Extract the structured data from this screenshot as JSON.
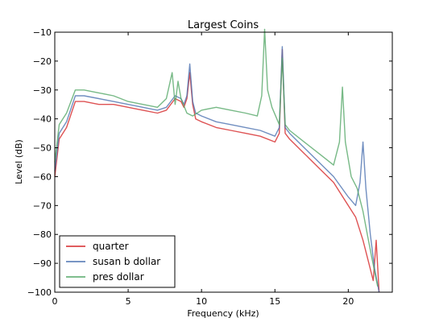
{
  "chart_data": {
    "type": "line",
    "title": "Largest Coins",
    "xlabel": "Frequency (kHz)",
    "ylabel": "Level (dB)",
    "xlim": [
      0,
      23
    ],
    "ylim": [
      -100,
      -10
    ],
    "xticks": [
      0,
      5,
      10,
      15,
      20
    ],
    "yticks": [
      -10,
      -20,
      -30,
      -40,
      -50,
      -60,
      -70,
      -80,
      -90,
      -100
    ],
    "grid": false,
    "legend_position": "lower-left",
    "series": [
      {
        "name": "quarter",
        "color": "#d62728",
        "x": [
          0,
          0.3,
          0.8,
          1.4,
          2,
          3,
          4,
          5,
          6,
          7,
          7.6,
          8.2,
          8.6,
          8.8,
          9.0,
          9.2,
          9.4,
          9.6,
          10,
          11,
          12,
          13,
          14,
          15,
          15.3,
          15.5,
          15.7,
          16,
          17,
          18,
          19,
          20,
          20.5,
          21,
          21.4,
          21.7,
          21.9,
          22.1
        ],
        "values": [
          -60,
          -47,
          -43,
          -34,
          -34,
          -35,
          -35,
          -36,
          -37,
          -38,
          -37,
          -33,
          -34,
          -36,
          -33,
          -24,
          -35,
          -40,
          -41,
          -43,
          -44,
          -45,
          -46,
          -48,
          -45,
          -16,
          -45,
          -47,
          -52,
          -57,
          -62,
          -70,
          -74,
          -82,
          -90,
          -96,
          -82,
          -100
        ]
      },
      {
        "name": "susan b dollar",
        "color": "#4c72b0",
        "x": [
          0,
          0.3,
          0.8,
          1.4,
          2,
          3,
          4,
          5,
          6,
          7,
          7.6,
          8.2,
          8.6,
          8.8,
          9.0,
          9.2,
          9.4,
          9.6,
          10,
          11,
          12,
          13,
          14,
          15,
          15.3,
          15.5,
          15.7,
          16,
          17,
          18,
          19,
          20,
          20.5,
          20.8,
          21.0,
          21.2,
          21.5,
          21.8,
          22.1
        ],
        "values": [
          -58,
          -45,
          -41,
          -32,
          -32,
          -33,
          -34,
          -35,
          -36,
          -37,
          -36,
          -32,
          -33,
          -35,
          -32,
          -21,
          -34,
          -38,
          -39,
          -41,
          -42,
          -43,
          -44,
          -46,
          -43,
          -15,
          -43,
          -45,
          -50,
          -55,
          -60,
          -67,
          -70,
          -62,
          -48,
          -64,
          -80,
          -92,
          -100
        ]
      },
      {
        "name": "pres dollar",
        "color": "#55a868",
        "x": [
          0,
          0.3,
          0.8,
          1.4,
          2,
          3,
          4,
          5,
          6,
          7,
          7.6,
          8.0,
          8.2,
          8.4,
          8.6,
          9.0,
          9.4,
          10,
          11,
          12,
          13,
          13.8,
          14.1,
          14.3,
          14.5,
          14.8,
          15.3,
          15.5,
          15.7,
          16,
          17,
          18,
          19,
          19.4,
          19.6,
          19.8,
          20.2,
          20.6,
          21,
          21.3,
          21.6,
          22
        ],
        "values": [
          -55,
          -42,
          -38,
          -30,
          -30,
          -31,
          -32,
          -34,
          -35,
          -36,
          -33,
          -24,
          -35,
          -27,
          -33,
          -38,
          -39,
          -37,
          -36,
          -37,
          -38,
          -39,
          -32,
          -9,
          -30,
          -36,
          -42,
          -19,
          -42,
          -44,
          -48,
          -52,
          -56,
          -48,
          -29,
          -48,
          -60,
          -64,
          -72,
          -80,
          -88,
          -98
        ]
      }
    ]
  }
}
